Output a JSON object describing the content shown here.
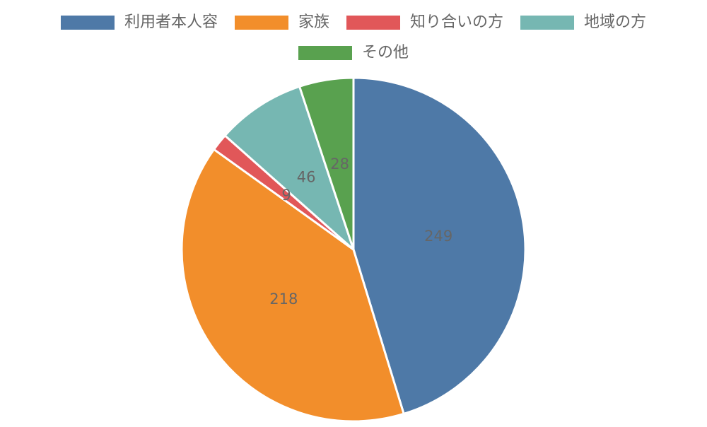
{
  "chart_data": {
    "type": "pie",
    "categories": [
      "利用者本人容",
      "家族",
      "知り合いの方",
      "地域の方",
      "その他"
    ],
    "values": [
      249,
      218,
      9,
      46,
      28
    ],
    "colors": [
      "#4e79a7",
      "#f28e2b",
      "#e15759",
      "#76b7b2",
      "#59a14f"
    ],
    "legend": "top"
  }
}
